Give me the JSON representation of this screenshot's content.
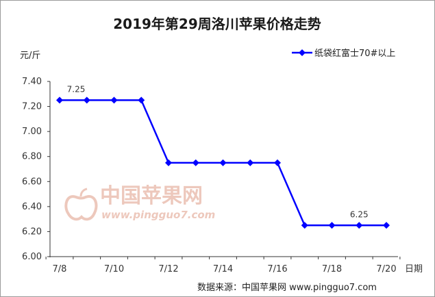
{
  "chart_data": {
    "type": "line",
    "title": "2019年第29周洛川苹果价格走势",
    "ylabel": "元/斤",
    "xlabel": "日期",
    "x_tick_labels": [
      "7/8",
      "7/10",
      "7/12",
      "7/14",
      "7/16",
      "7/18",
      "7/20"
    ],
    "y_tick_labels": [
      "6.00",
      "6.20",
      "6.40",
      "6.60",
      "6.80",
      "7.00",
      "7.20",
      "7.40"
    ],
    "ylim": [
      6.0,
      7.4
    ],
    "grid": false,
    "legend_position": "top-right",
    "series": [
      {
        "name": "纸袋红富士70#以上",
        "color": "#0000ff",
        "x": [
          "7/8",
          "7/9",
          "7/10",
          "7/11",
          "7/12",
          "7/13",
          "7/14",
          "7/15",
          "7/16",
          "7/17",
          "7/18",
          "7/19",
          "7/20"
        ],
        "values": [
          7.25,
          7.25,
          7.25,
          7.25,
          6.75,
          6.75,
          6.75,
          6.75,
          6.75,
          6.25,
          6.25,
          6.25,
          6.25
        ]
      }
    ],
    "data_labels": [
      {
        "x": "7/8",
        "text": "7.25"
      },
      {
        "x": "7/19",
        "text": "6.25"
      }
    ]
  },
  "source_text": "数据来源：中国苹果网 www.pingguo7.com",
  "watermark": {
    "name": "中国苹果网",
    "url": "www.pingguo7.com",
    "color": "#e7b6a6",
    "icon": "apple-logo-icon"
  }
}
